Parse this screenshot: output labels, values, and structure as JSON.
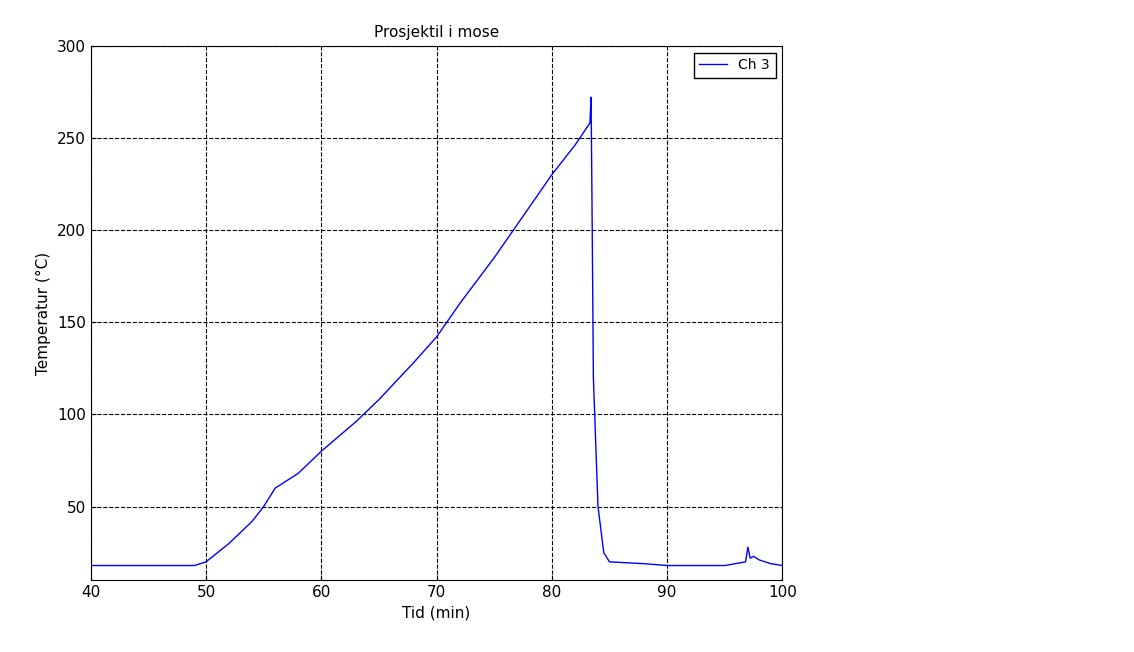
{
  "chart_data": {
    "type": "line",
    "title": "Prosjektil i mose",
    "x_label": "Tid (min)",
    "y_label": "Temperatur (°C)",
    "x": [
      40,
      45,
      49,
      49.5,
      50,
      51,
      52,
      53,
      54,
      55,
      56,
      58,
      60,
      63,
      65,
      68,
      70,
      72,
      75,
      78,
      80,
      82,
      83.3,
      83.4,
      83.5,
      83.6,
      84,
      84.5,
      85,
      88,
      90,
      95,
      96.8,
      97,
      97.2,
      97.5,
      98,
      99,
      100
    ],
    "series": [
      {
        "name": "Ch 3",
        "color": "#0000ff",
        "line_style": "solid",
        "values": [
          18,
          18,
          18,
          19,
          20,
          25,
          30,
          36,
          42,
          50,
          60,
          68,
          80,
          96,
          108,
          128,
          142,
          160,
          185,
          212,
          230,
          246,
          258,
          272,
          200,
          120,
          50,
          25,
          20,
          19,
          18,
          18,
          20,
          28,
          22,
          23,
          21,
          19,
          18
        ]
      }
    ],
    "xlim": [
      40,
      100
    ],
    "xticks": [
      40,
      50,
      60,
      70,
      80,
      90,
      100
    ],
    "ylim": [
      10,
      300
    ],
    "yticks": [
      50,
      100,
      150,
      200,
      250,
      300
    ],
    "grid": true,
    "legend": "upper right"
  }
}
